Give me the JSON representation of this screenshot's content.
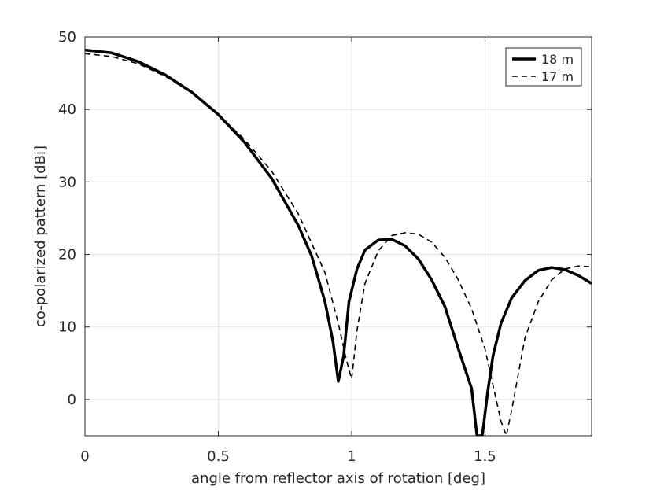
{
  "chart_data": {
    "type": "line",
    "title": "",
    "xlabel": "angle from reflector axis of rotation [deg]",
    "ylabel": "co-polarized pattern [dBi]",
    "xlim": [
      0,
      1.9
    ],
    "ylim": [
      -5,
      50
    ],
    "xticks": [
      0,
      0.5,
      1,
      1.5
    ],
    "xtick_labels": [
      "0",
      "0.5",
      "1",
      "1.5"
    ],
    "yticks": [
      0,
      10,
      20,
      30,
      40,
      50
    ],
    "ytick_labels": [
      "0",
      "10",
      "20",
      "30",
      "40",
      "50"
    ],
    "grid": true,
    "legend_position": "top-right",
    "series": [
      {
        "name": "18 m",
        "style": "solid",
        "x": [
          0,
          0.1,
          0.2,
          0.3,
          0.4,
          0.5,
          0.6,
          0.7,
          0.8,
          0.85,
          0.9,
          0.93,
          0.95,
          0.97,
          0.99,
          1.02,
          1.05,
          1.1,
          1.15,
          1.2,
          1.25,
          1.3,
          1.35,
          1.4,
          1.45,
          1.47,
          1.48,
          1.49,
          1.51,
          1.53,
          1.56,
          1.6,
          1.65,
          1.7,
          1.75,
          1.8,
          1.85,
          1.9
        ],
        "y": [
          48.2,
          47.8,
          46.6,
          44.8,
          42.4,
          39.3,
          35.4,
          30.5,
          24.0,
          19.8,
          13.5,
          8.0,
          2.5,
          6.0,
          13.5,
          18.0,
          20.6,
          22.0,
          22.1,
          21.2,
          19.4,
          16.5,
          12.8,
          7.0,
          1.5,
          -5,
          -5,
          -5,
          1.0,
          6.0,
          10.5,
          14.0,
          16.4,
          17.8,
          18.2,
          17.9,
          17.1,
          16.0
        ]
      },
      {
        "name": "17 m",
        "style": "dashed",
        "x": [
          0,
          0.1,
          0.2,
          0.3,
          0.4,
          0.5,
          0.6,
          0.7,
          0.8,
          0.9,
          0.95,
          0.98,
          1.0,
          1.02,
          1.05,
          1.1,
          1.15,
          1.2,
          1.25,
          1.3,
          1.35,
          1.4,
          1.45,
          1.5,
          1.53,
          1.56,
          1.58,
          1.6,
          1.62,
          1.65,
          1.7,
          1.75,
          1.8,
          1.85,
          1.9
        ],
        "y": [
          47.7,
          47.3,
          46.3,
          44.6,
          42.3,
          39.3,
          35.8,
          31.5,
          25.6,
          17.5,
          10.5,
          5.5,
          2.8,
          9.5,
          16.0,
          20.5,
          22.6,
          23.0,
          22.8,
          21.7,
          19.6,
          16.5,
          12.5,
          7.0,
          2.0,
          -3.0,
          -5,
          -1.5,
          2.5,
          8.5,
          13.5,
          16.5,
          18.0,
          18.4,
          18.3
        ]
      }
    ]
  }
}
